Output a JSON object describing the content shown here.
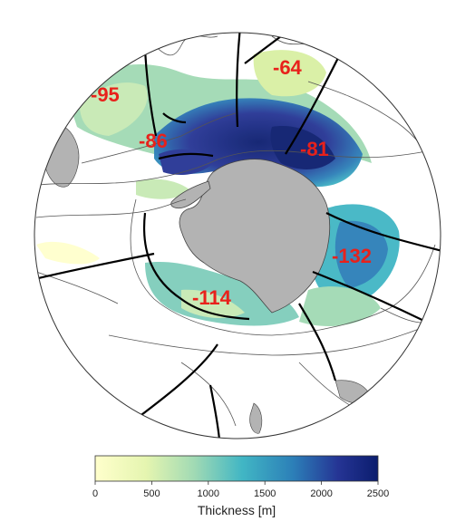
{
  "regions": [
    {
      "id": "wedge-1",
      "label": "-95"
    },
    {
      "id": "wedge-2",
      "label": "-86"
    },
    {
      "id": "wedge-3",
      "label": "-64"
    },
    {
      "id": "wedge-4",
      "label": "-81"
    },
    {
      "id": "wedge-5",
      "label": "-132"
    },
    {
      "id": "wedge-6",
      "label": "-114"
    }
  ],
  "colorbar": {
    "title": "Thickness [m]",
    "ticks": [
      "0",
      "500",
      "1000",
      "1500",
      "2000",
      "2500"
    ],
    "range": [
      0,
      2500
    ],
    "colors": [
      "#ffffcc",
      "#d9f0a3",
      "#a1dab4",
      "#41b6c4",
      "#2c7fb8",
      "#253494",
      "#0b1d6e"
    ]
  },
  "colors": {
    "land": "#b3b3b3",
    "label": "#e8211b",
    "outline": "#555555",
    "sector_line": "#000000"
  }
}
